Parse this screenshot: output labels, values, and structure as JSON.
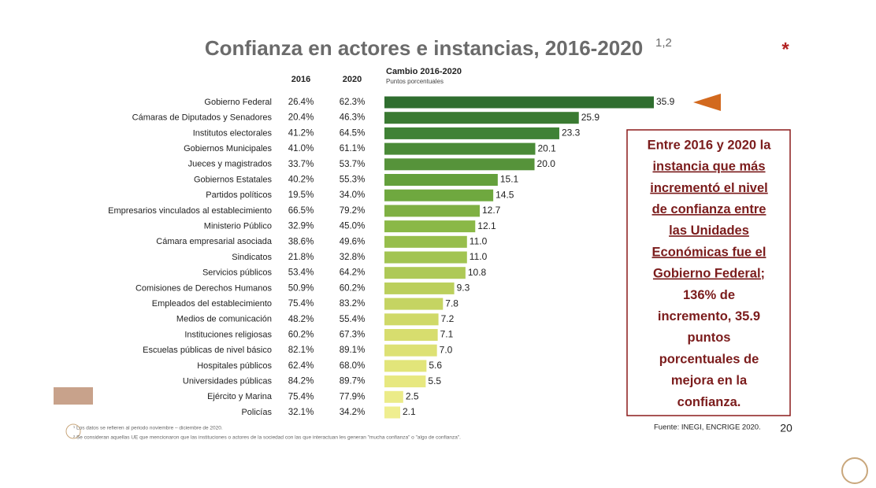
{
  "chart_data": {
    "type": "bar",
    "title": "Confianza en actores e instancias, 2016-2020",
    "title_superscript": "1,2",
    "asterisk": "*",
    "col_headers": [
      "2016",
      "2020"
    ],
    "change_header": "Cambio 2016-2020",
    "change_subheader": "Puntos porcentuales",
    "categories": [
      "Gobierno Federal",
      "Cámaras de Diputados y Senadores",
      "Institutos electorales",
      "Gobiernos Municipales",
      "Jueces y magistrados",
      "Gobiernos Estatales",
      "Partidos políticos",
      "Empresarios vinculados al establecimiento",
      "Ministerio Público",
      "Cámara empresarial asociada",
      "Sindicatos",
      "Servicios públicos",
      "Comisiones de Derechos Humanos",
      "Empleados del establecimiento",
      "Medios de comunicación",
      "Instituciones religiosas",
      "Escuelas públicas de nivel básico",
      "Hospitales públicos",
      "Universidades públicas",
      "Ejército y Marina",
      "Policías"
    ],
    "col_2016": [
      "26.4%",
      "20.4%",
      "41.2%",
      "41.0%",
      "33.7%",
      "40.2%",
      "19.5%",
      "66.5%",
      "32.9%",
      "38.6%",
      "21.8%",
      "53.4%",
      "50.9%",
      "75.4%",
      "48.2%",
      "60.2%",
      "82.1%",
      "62.4%",
      "84.2%",
      "75.4%",
      "32.1%"
    ],
    "col_2020": [
      "62.3%",
      "46.3%",
      "64.5%",
      "61.1%",
      "53.7%",
      "55.3%",
      "34.0%",
      "79.2%",
      "45.0%",
      "49.6%",
      "32.8%",
      "64.2%",
      "60.2%",
      "83.2%",
      "55.4%",
      "67.3%",
      "89.1%",
      "68.0%",
      "89.7%",
      "77.9%",
      "34.2%"
    ],
    "values": [
      35.9,
      25.9,
      23.3,
      20.1,
      20.0,
      15.1,
      14.5,
      12.7,
      12.1,
      11.0,
      11.0,
      10.8,
      9.3,
      7.8,
      7.2,
      7.1,
      7.0,
      5.6,
      5.5,
      2.5,
      2.1
    ],
    "value_labels": [
      "35.9",
      "25.9",
      "23.3",
      "20.1",
      "20.0",
      "15.1",
      "14.5",
      "12.7",
      "12.1",
      "11.0",
      "11.0",
      "10.8",
      "9.3",
      "7.8",
      "7.2",
      "7.1",
      "7.0",
      "5.6",
      "5.5",
      "2.5",
      "2.1"
    ],
    "colors": [
      "#2f6e2f",
      "#3a7a32",
      "#3f8235",
      "#4a8a37",
      "#56933a",
      "#64a03c",
      "#6fa83f",
      "#7fb043",
      "#8ab847",
      "#97be4c",
      "#a2c452",
      "#aec957",
      "#bbcf5c",
      "#c5d462",
      "#cfd968",
      "#d7dd6e",
      "#dde174",
      "#e2e57a",
      "#e7e880",
      "#ebeb88",
      "#efee90"
    ],
    "note_lines": [
      "Entre 2016 y 2020 la",
      "instancia que más",
      "incrementó el nivel",
      "de confianza entre",
      "las Unidades",
      "Económicas fue el",
      "Gobierno Federal;",
      "136% de",
      "incremento, 35.9",
      "puntos",
      "porcentuales de",
      "mejora en la",
      "confianza."
    ],
    "note_underlined": [
      false,
      true,
      true,
      true,
      true,
      true,
      true,
      false,
      false,
      false,
      false,
      false,
      false
    ],
    "footnotes": [
      "¹ Los datos se refieren al periodo noviembre – diciembre de 2020.",
      "² Se consideran aquellas UE que mencionaron que las instituciones o actores de la sociedad con las que interactuan les generan \"mucha confianza\" o \"algo de confianza\"."
    ],
    "source": "Fuente: INEGI, ENCRIGE 2020.",
    "page_number": "20"
  }
}
